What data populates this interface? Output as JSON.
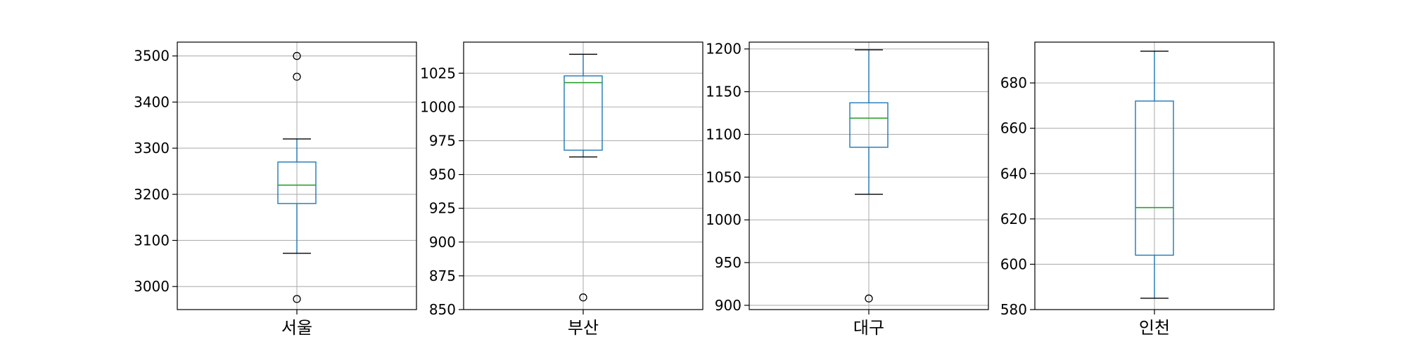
{
  "chart_data": [
    {
      "type": "box",
      "category": "서울",
      "ylim": [
        2950,
        3530
      ],
      "yticks": [
        3000,
        3100,
        3200,
        3300,
        3400,
        3500
      ],
      "grid": true,
      "stats": {
        "whisker_low": 3072,
        "q1": 3180,
        "median": 3220,
        "q3": 3270,
        "whisker_high": 3320
      },
      "outliers": [
        2973,
        3455,
        3500
      ]
    },
    {
      "type": "box",
      "category": "부산",
      "ylim": [
        850,
        1048
      ],
      "yticks": [
        850,
        875,
        900,
        925,
        950,
        975,
        1000,
        1025
      ],
      "grid": true,
      "stats": {
        "whisker_low": 963,
        "q1": 968,
        "median": 1018,
        "q3": 1023,
        "whisker_high": 1039
      },
      "outliers": [
        859
      ]
    },
    {
      "type": "box",
      "category": "대구",
      "ylim": [
        895,
        1208
      ],
      "yticks": [
        900,
        950,
        1000,
        1050,
        1100,
        1150,
        1200
      ],
      "grid": true,
      "stats": {
        "whisker_low": 1030,
        "q1": 1085,
        "median": 1119,
        "q3": 1137,
        "whisker_high": 1199
      },
      "outliers": [
        908
      ]
    },
    {
      "type": "box",
      "category": "인천",
      "ylim": [
        580,
        698
      ],
      "yticks": [
        580,
        600,
        620,
        640,
        660,
        680
      ],
      "grid": true,
      "stats": {
        "whisker_low": 585,
        "q1": 604,
        "median": 625,
        "q3": 672,
        "whisker_high": 694
      },
      "outliers": []
    }
  ],
  "colors": {
    "box": "#1f77b4",
    "median": "#2ca02c",
    "grid": "#b0b0b0",
    "outlier_edge": "#000000"
  }
}
